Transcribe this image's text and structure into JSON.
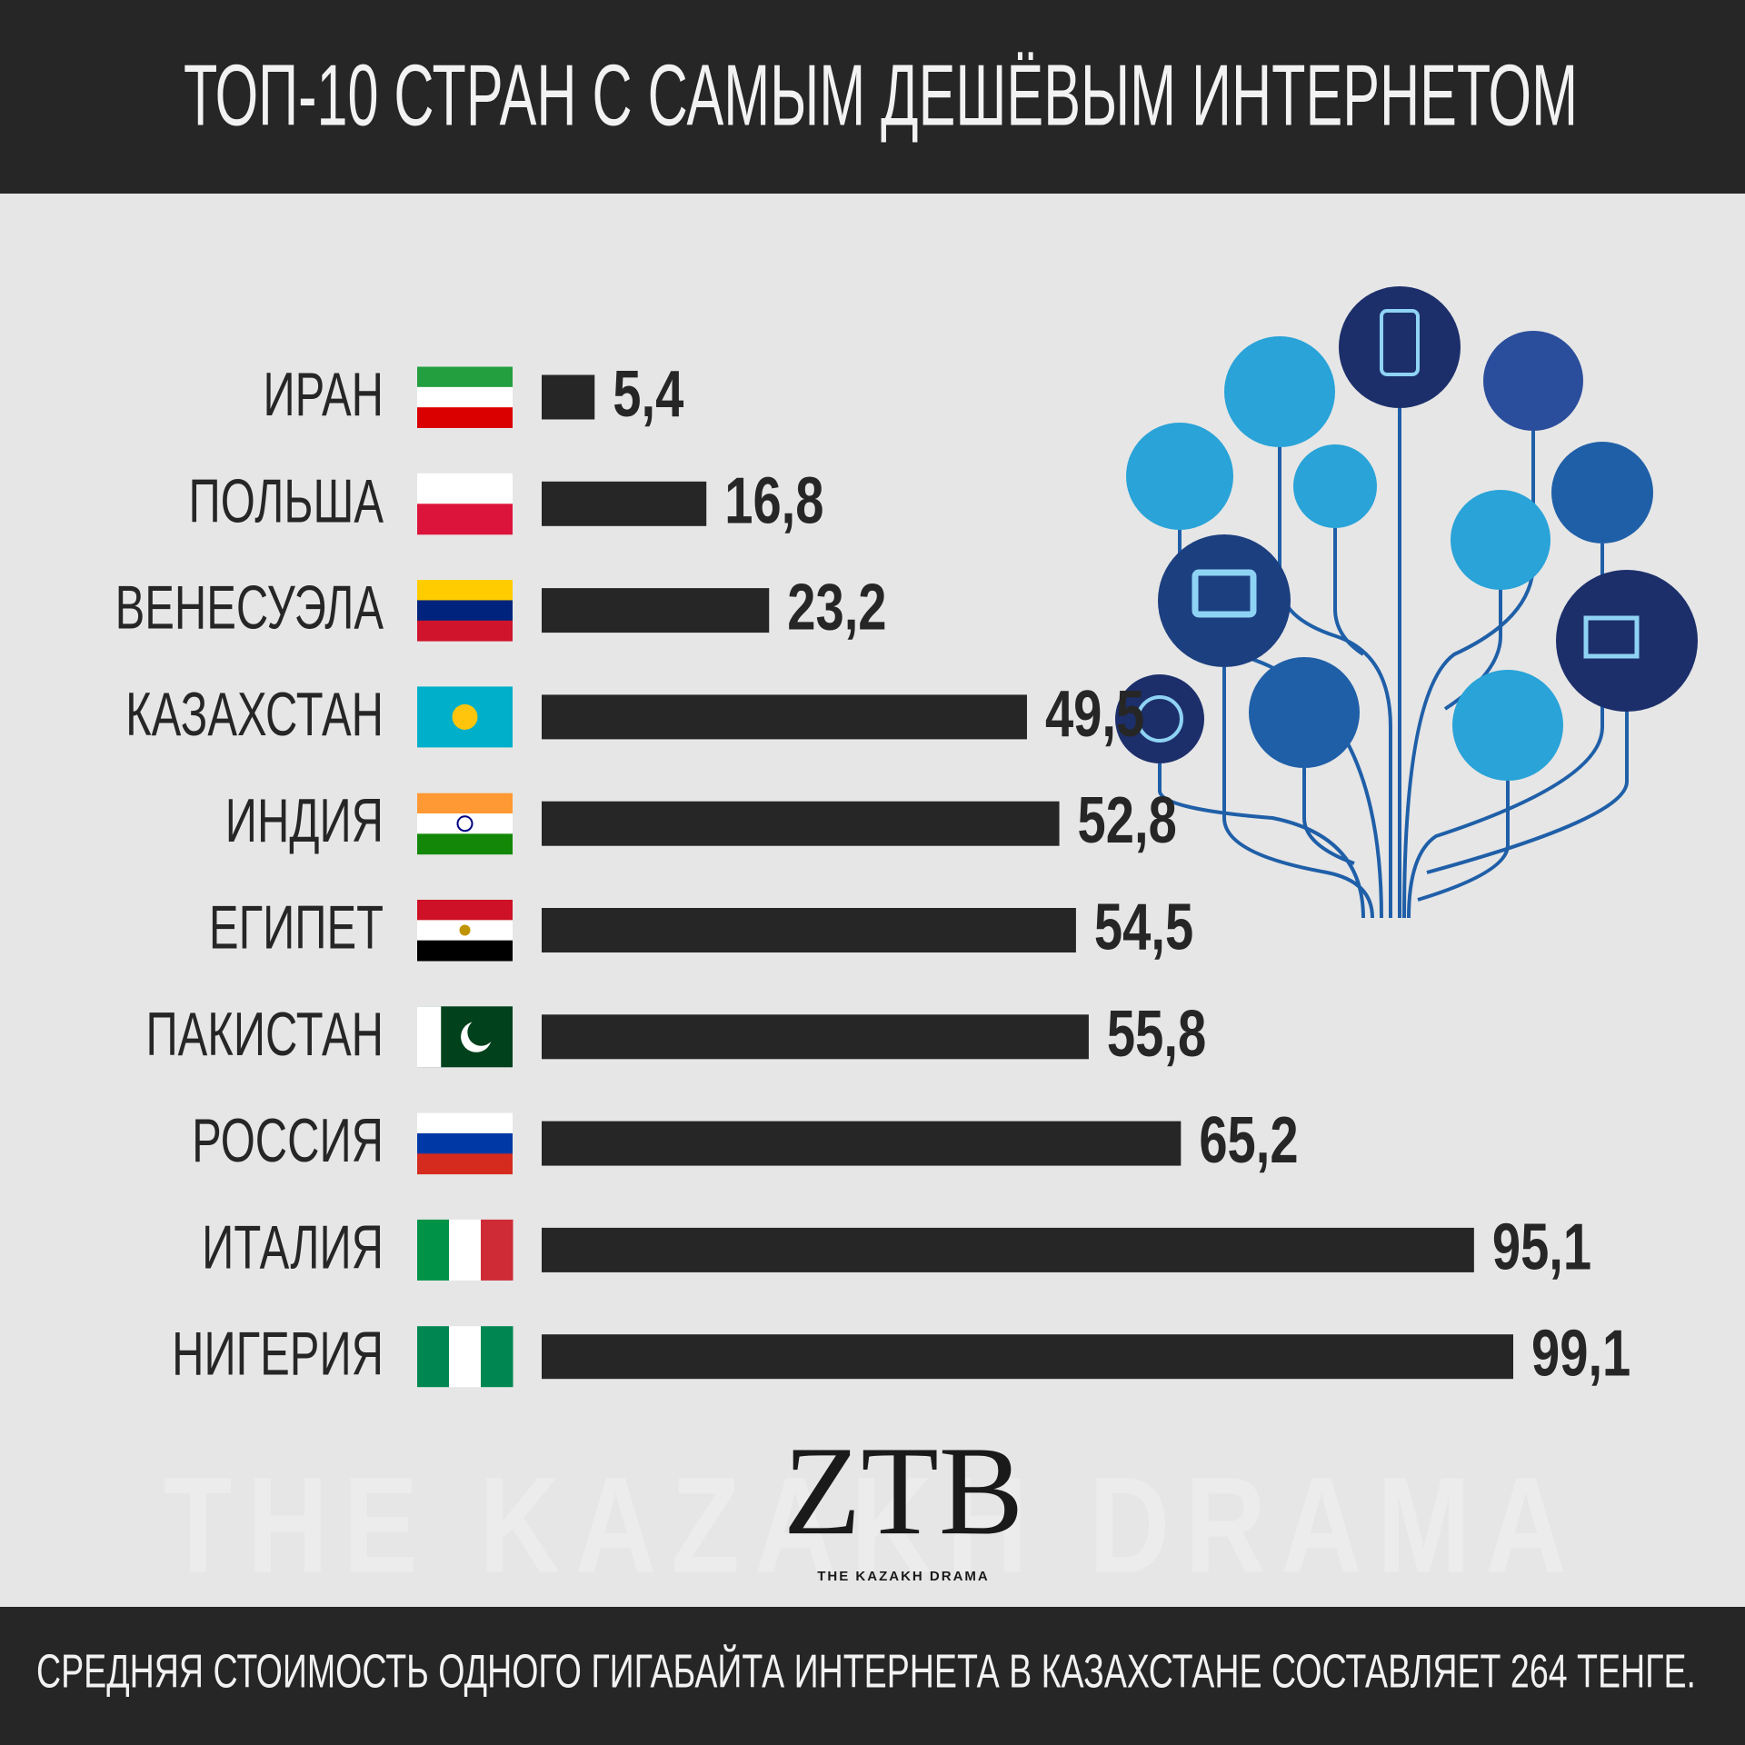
{
  "chart_data": {
    "type": "bar",
    "orientation": "horizontal",
    "title": "ТОП-10 СТРАН С САМЫМ ДЕШЁВЫМ ИНТЕРНЕТОМ",
    "categories": [
      "ИРАН",
      "ПОЛЬША",
      "ВЕНЕСУЭЛА",
      "КАЗАХСТАН",
      "ИНДИЯ",
      "ЕГИПЕТ",
      "ПАКИСТАН",
      "РОССИЯ",
      "ИТАЛИЯ",
      "НИГЕРИЯ"
    ],
    "values": [
      5.4,
      16.8,
      23.2,
      49.5,
      52.8,
      54.5,
      55.8,
      65.2,
      95.1,
      99.1
    ],
    "value_labels": [
      "5,4",
      "16,8",
      "23,2",
      "49,5",
      "52,8",
      "54,5",
      "55,8",
      "65,2",
      "95,1",
      "99,1"
    ],
    "color": "#262626",
    "note": "СРЕДНЯЯ СТОИМОСТЬ ОДНОГО ГИГАБАЙТА ИНТЕРНЕТА В КАЗАХСТАНЕ СОСТАВЛЯЕТ 264 ТЕНГЕ."
  },
  "branding": {
    "mark": "ZTB",
    "caption": "THE KAZAKH DRAMA"
  }
}
